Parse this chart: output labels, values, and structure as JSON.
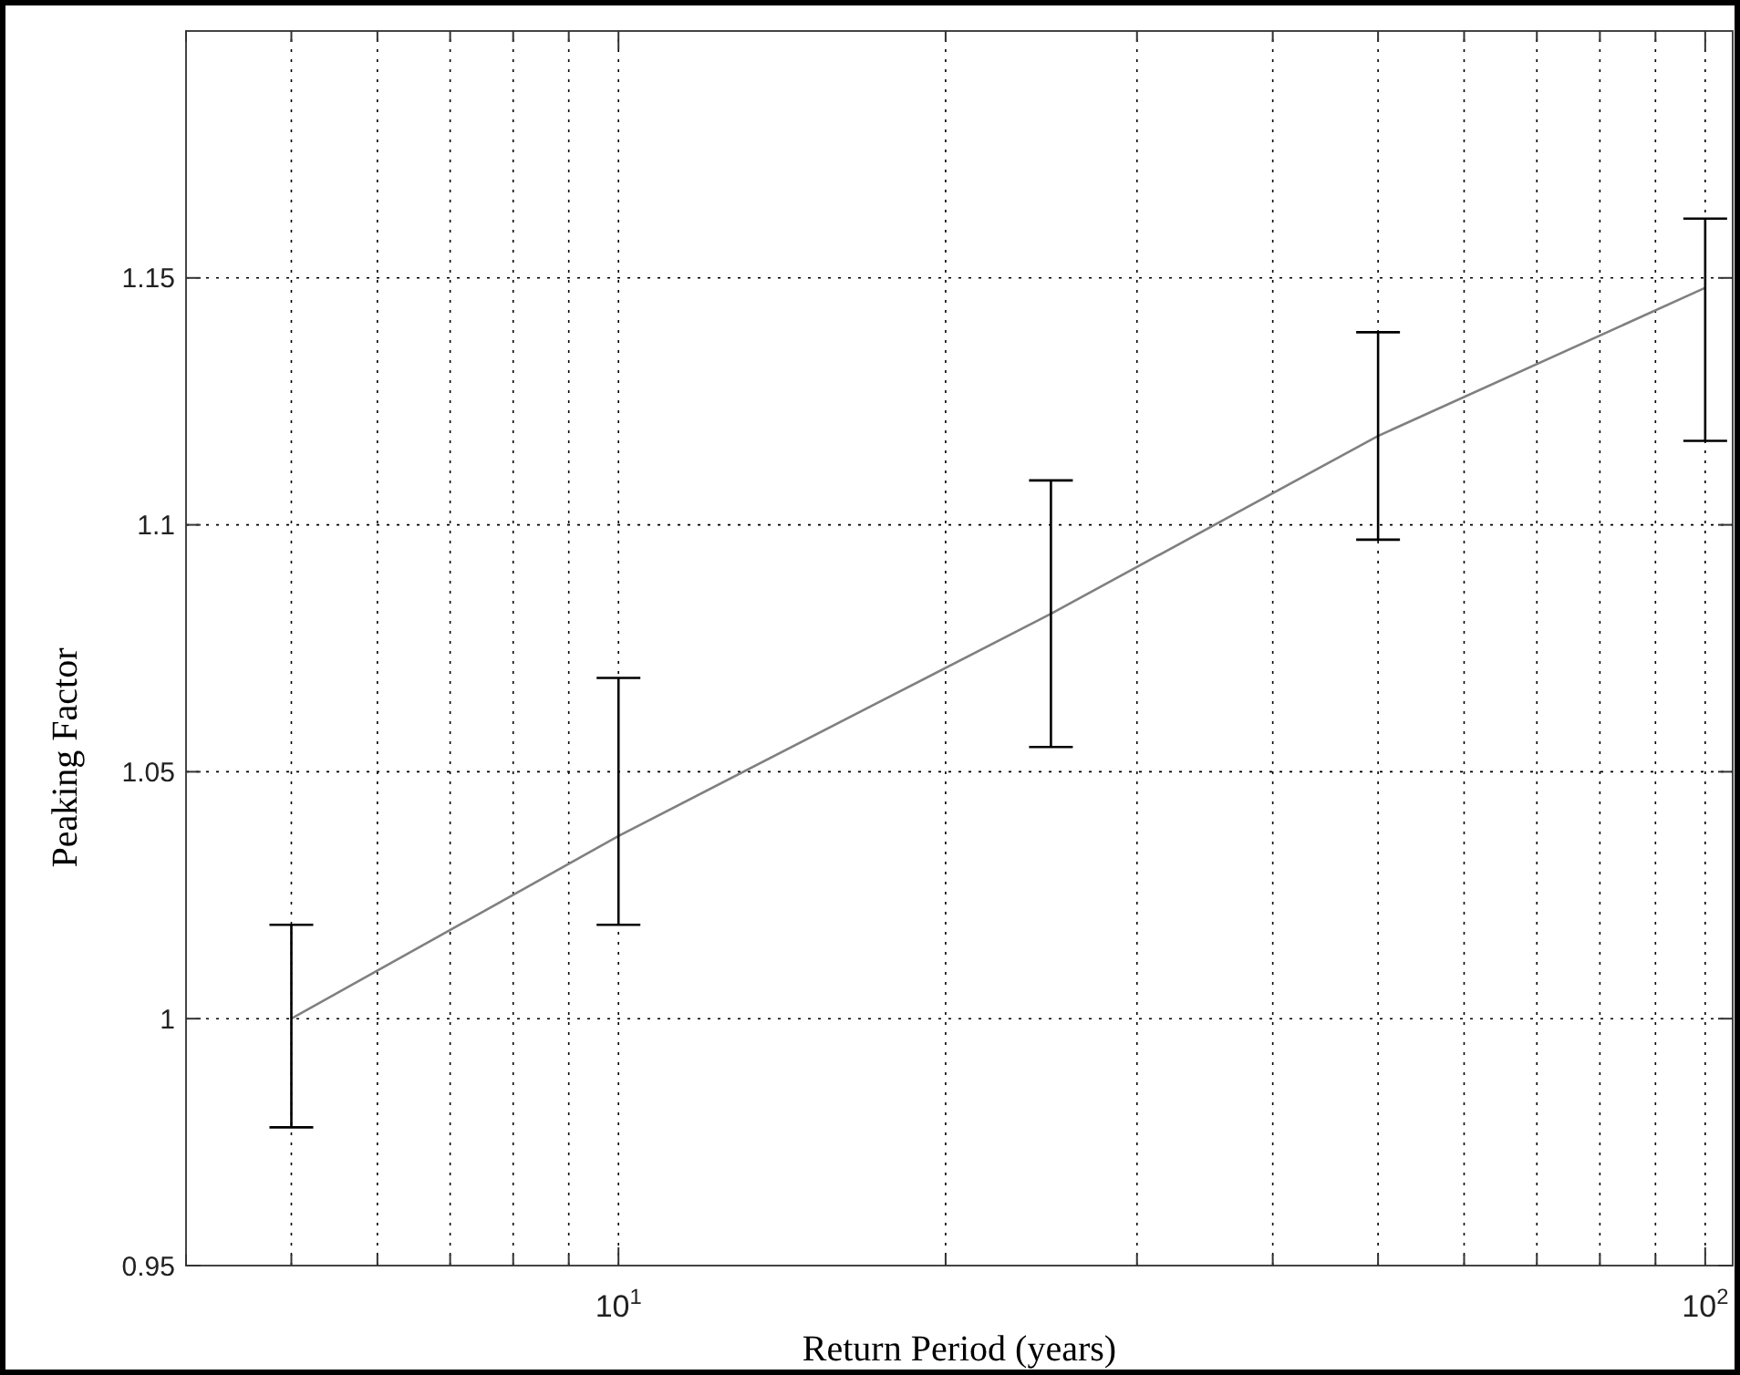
{
  "chart_data": {
    "type": "line",
    "xlabel": "Return Period (years)",
    "ylabel": "Peaking Factor",
    "x": [
      5,
      10,
      25,
      50,
      100
    ],
    "series": [
      {
        "color": "#808080",
        "values": [
          1.0,
          1.037,
          1.082,
          1.118,
          1.148
        ],
        "errors": [
          [
            0.978,
            1.019
          ],
          [
            1.019,
            1.069
          ],
          [
            1.055,
            1.109
          ],
          [
            1.097,
            1.139
          ],
          [
            1.117,
            1.162
          ]
        ]
      }
    ],
    "log": "x",
    "xlim": [
      4,
      106
    ],
    "ylim": [
      0.95,
      1.2
    ],
    "xticks": [
      {
        "value": 4,
        "label": null
      },
      {
        "value": 5,
        "label": null
      },
      {
        "value": 6,
        "label": null
      },
      {
        "value": 7,
        "label": null
      },
      {
        "value": 8,
        "label": null
      },
      {
        "value": 9,
        "label": null
      },
      {
        "value": 10,
        "label": "10$^{1}$"
      },
      {
        "value": 20,
        "label": null
      },
      {
        "value": 30,
        "label": null
      },
      {
        "value": 40,
        "label": null
      },
      {
        "value": 50,
        "label": null
      },
      {
        "value": 60,
        "label": null
      },
      {
        "value": 70,
        "label": null
      },
      {
        "value": 80,
        "label": null
      },
      {
        "value": 90,
        "label": null
      },
      {
        "value": 100,
        "label": "10$^{2}$"
      }
    ],
    "yticks": [
      0.95,
      1,
      1.05,
      1.1,
      1.15
    ],
    "grid": true,
    "marker": "none",
    "line_style": "solid"
  }
}
